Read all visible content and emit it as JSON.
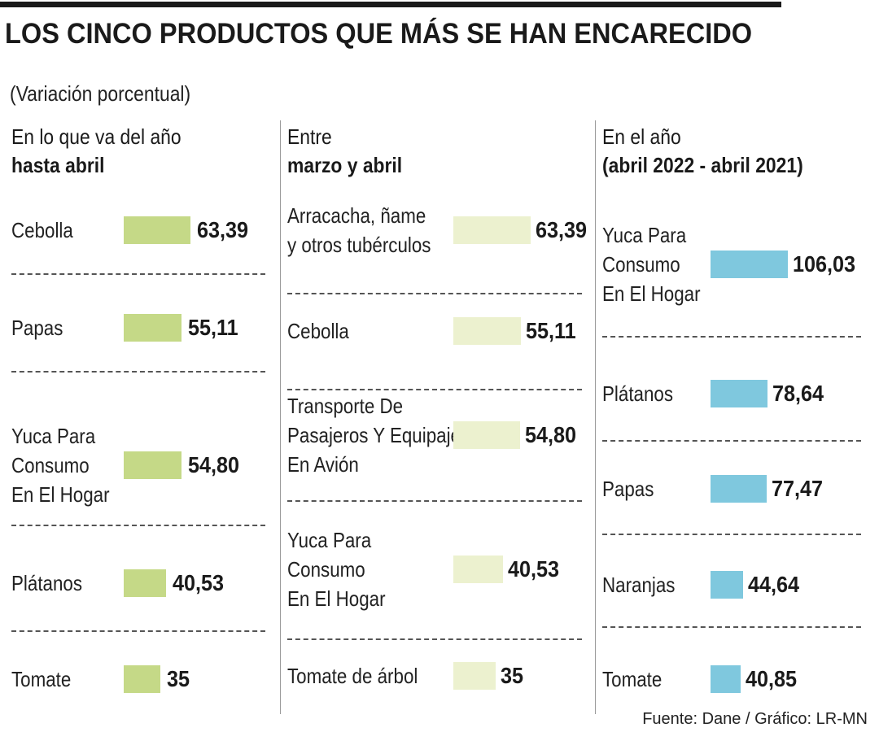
{
  "title": "LOS CINCO PRODUCTOS QUE MÁS SE HAN ENCARECIDO",
  "subtitle": "(Variación porcentual)",
  "source": "Fuente: Dane / Gráfico: LR-MN",
  "colors": {
    "green": "#c5d987",
    "pale": "#ecf1cf",
    "blue": "#7fc8de"
  },
  "chart_data": [
    {
      "type": "bar",
      "title": "En lo que va del año hasta abril",
      "header_line1": "En lo que va del año",
      "header_line2": "hasta abril",
      "color": "#c5d987",
      "categories": [
        "Cebolla",
        "Papas",
        "Yuca Para\nConsumo\nEn El Hogar",
        "Plátanos",
        "Tomate"
      ],
      "values": [
        63.39,
        55.11,
        54.8,
        40.53,
        35
      ],
      "value_labels": [
        "63,39",
        "55,11",
        "54,80",
        "40,53",
        "35"
      ]
    },
    {
      "type": "bar",
      "title": "Entre marzo y abril",
      "header_line1": "Entre",
      "header_line2": "marzo y abril",
      "color": "#ecf1cf",
      "categories": [
        "Arracacha, ñame\ny otros tubérculos",
        "Cebolla",
        "Transporte De\nPasajeros Y Equipaje\nEn Avión",
        "Yuca Para\nConsumo\nEn El Hogar",
        "Tomate de árbol"
      ],
      "values": [
        63.39,
        55.11,
        54.8,
        40.53,
        35
      ],
      "value_labels": [
        "63,39",
        "55,11",
        "54,80",
        "40,53",
        "35"
      ]
    },
    {
      "type": "bar",
      "title": "En el año (abril 2022 - abril 2021)",
      "header_line1": "En el año",
      "header_line2": "(abril 2022 - abril 2021)",
      "color": "#7fc8de",
      "categories": [
        "Yuca Para\nConsumo\nEn El Hogar",
        "Plátanos",
        "Papas",
        "Naranjas",
        "Tomate"
      ],
      "values": [
        106.03,
        78.64,
        77.47,
        44.64,
        40.85
      ],
      "value_labels": [
        "106,03",
        "78,64",
        "77,47",
        "44,64",
        "40,85"
      ]
    }
  ]
}
